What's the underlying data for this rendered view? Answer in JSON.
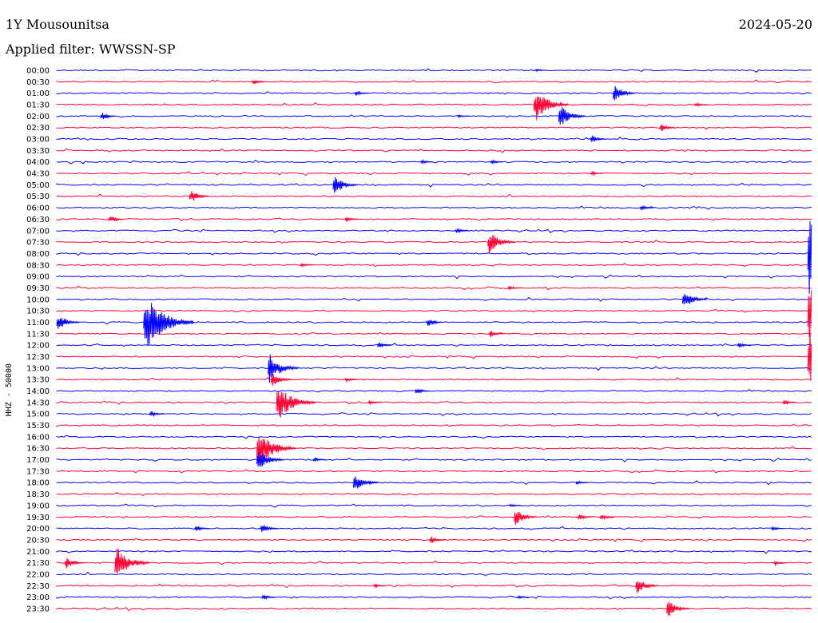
{
  "header": {
    "station": "1Y Mousounitsa",
    "date": "2024-05-20",
    "filter": "Applied filter: WWSSN-SP"
  },
  "chart_data": {
    "type": "line",
    "ylabel": "HHZ - 50000",
    "colors": {
      "even_rows": "#0000ff",
      "odd_rows": "#ff0033"
    },
    "ticks": [
      "00:00",
      "00:30",
      "01:00",
      "01:30",
      "02:00",
      "02:30",
      "03:00",
      "03:30",
      "04:00",
      "04:30",
      "05:00",
      "05:30",
      "06:00",
      "06:30",
      "07:00",
      "07:30",
      "08:00",
      "08:30",
      "09:00",
      "09:30",
      "10:00",
      "10:30",
      "11:00",
      "11:30",
      "12:00",
      "12:30",
      "13:00",
      "13:30",
      "14:00",
      "14:30",
      "15:00",
      "15:30",
      "16:00",
      "16:30",
      "17:00",
      "17:30",
      "18:00",
      "18:30",
      "19:00",
      "19:30",
      "20:00",
      "20:30",
      "21:00",
      "21:30",
      "22:00",
      "22:30",
      "23:00",
      "23:30"
    ],
    "events": [
      {
        "row": 0,
        "pos": 0.634,
        "amp": 3
      },
      {
        "row": 1,
        "pos": 0.259,
        "amp": 5
      },
      {
        "row": 2,
        "pos": 0.395,
        "amp": 5
      },
      {
        "row": 2,
        "pos": 0.737,
        "amp": 14
      },
      {
        "row": 3,
        "pos": 0.632,
        "amp": 26
      },
      {
        "row": 3,
        "pos": 0.845,
        "amp": 4
      },
      {
        "row": 4,
        "pos": 0.058,
        "amp": 7
      },
      {
        "row": 4,
        "pos": 0.531,
        "amp": 3
      },
      {
        "row": 4,
        "pos": 0.665,
        "amp": 18
      },
      {
        "row": 5,
        "pos": 0.799,
        "amp": 7
      },
      {
        "row": 6,
        "pos": 0.707,
        "amp": 7
      },
      {
        "row": 8,
        "pos": 0.482,
        "amp": 4
      },
      {
        "row": 8,
        "pos": 0.575,
        "amp": 4
      },
      {
        "row": 9,
        "pos": 0.707,
        "amp": 4
      },
      {
        "row": 10,
        "pos": 0.366,
        "amp": 16
      },
      {
        "row": 11,
        "pos": 0.176,
        "amp": 11
      },
      {
        "row": 12,
        "pos": 0.773,
        "amp": 5
      },
      {
        "row": 13,
        "pos": 0.069,
        "amp": 6
      },
      {
        "row": 13,
        "pos": 0.382,
        "amp": 5
      },
      {
        "row": 14,
        "pos": 0.528,
        "amp": 5
      },
      {
        "row": 15,
        "pos": 0.571,
        "amp": 18
      },
      {
        "row": 16,
        "pos": 0.995,
        "amp": 58
      },
      {
        "row": 17,
        "pos": 0.323,
        "amp": 4
      },
      {
        "row": 19,
        "pos": 0.598,
        "amp": 4
      },
      {
        "row": 20,
        "pos": 0.829,
        "amp": 16
      },
      {
        "row": 21,
        "pos": 0.995,
        "amp": 45
      },
      {
        "row": 22,
        "pos": 0.0,
        "amp": 14
      },
      {
        "row": 22,
        "pos": 0.115,
        "amp": 44
      },
      {
        "row": 22,
        "pos": 0.49,
        "amp": 8
      },
      {
        "row": 23,
        "pos": 0.573,
        "amp": 6
      },
      {
        "row": 24,
        "pos": 0.425,
        "amp": 6
      },
      {
        "row": 24,
        "pos": 0.902,
        "amp": 5
      },
      {
        "row": 25,
        "pos": 0.995,
        "amp": 40
      },
      {
        "row": 26,
        "pos": 0.28,
        "amp": 22
      },
      {
        "row": 27,
        "pos": 0.284,
        "amp": 12
      },
      {
        "row": 27,
        "pos": 0.382,
        "amp": 4
      },
      {
        "row": 28,
        "pos": 0.475,
        "amp": 6
      },
      {
        "row": 29,
        "pos": 0.291,
        "amp": 30
      },
      {
        "row": 29,
        "pos": 0.413,
        "amp": 4
      },
      {
        "row": 29,
        "pos": 0.962,
        "amp": 5
      },
      {
        "row": 30,
        "pos": 0.123,
        "amp": 6
      },
      {
        "row": 33,
        "pos": 0.265,
        "amp": 30
      },
      {
        "row": 34,
        "pos": 0.265,
        "amp": 18
      },
      {
        "row": 34,
        "pos": 0.34,
        "amp": 4
      },
      {
        "row": 36,
        "pos": 0.393,
        "amp": 16
      },
      {
        "row": 36,
        "pos": 0.688,
        "amp": 4
      },
      {
        "row": 38,
        "pos": 0.6,
        "amp": 3
      },
      {
        "row": 39,
        "pos": 0.606,
        "amp": 14
      },
      {
        "row": 39,
        "pos": 0.69,
        "amp": 6
      },
      {
        "row": 39,
        "pos": 0.72,
        "amp": 6
      },
      {
        "row": 40,
        "pos": 0.183,
        "amp": 6
      },
      {
        "row": 40,
        "pos": 0.27,
        "amp": 9
      },
      {
        "row": 40,
        "pos": 0.947,
        "amp": 4
      },
      {
        "row": 41,
        "pos": 0.494,
        "amp": 7
      },
      {
        "row": 43,
        "pos": 0.011,
        "amp": 10
      },
      {
        "row": 43,
        "pos": 0.077,
        "amp": 26
      },
      {
        "row": 43,
        "pos": 0.95,
        "amp": 4
      },
      {
        "row": 45,
        "pos": 0.42,
        "amp": 4
      },
      {
        "row": 45,
        "pos": 0.767,
        "amp": 14
      },
      {
        "row": 46,
        "pos": 0.272,
        "amp": 5
      },
      {
        "row": 46,
        "pos": 0.61,
        "amp": 3
      },
      {
        "row": 47,
        "pos": 0.808,
        "amp": 14
      }
    ]
  }
}
